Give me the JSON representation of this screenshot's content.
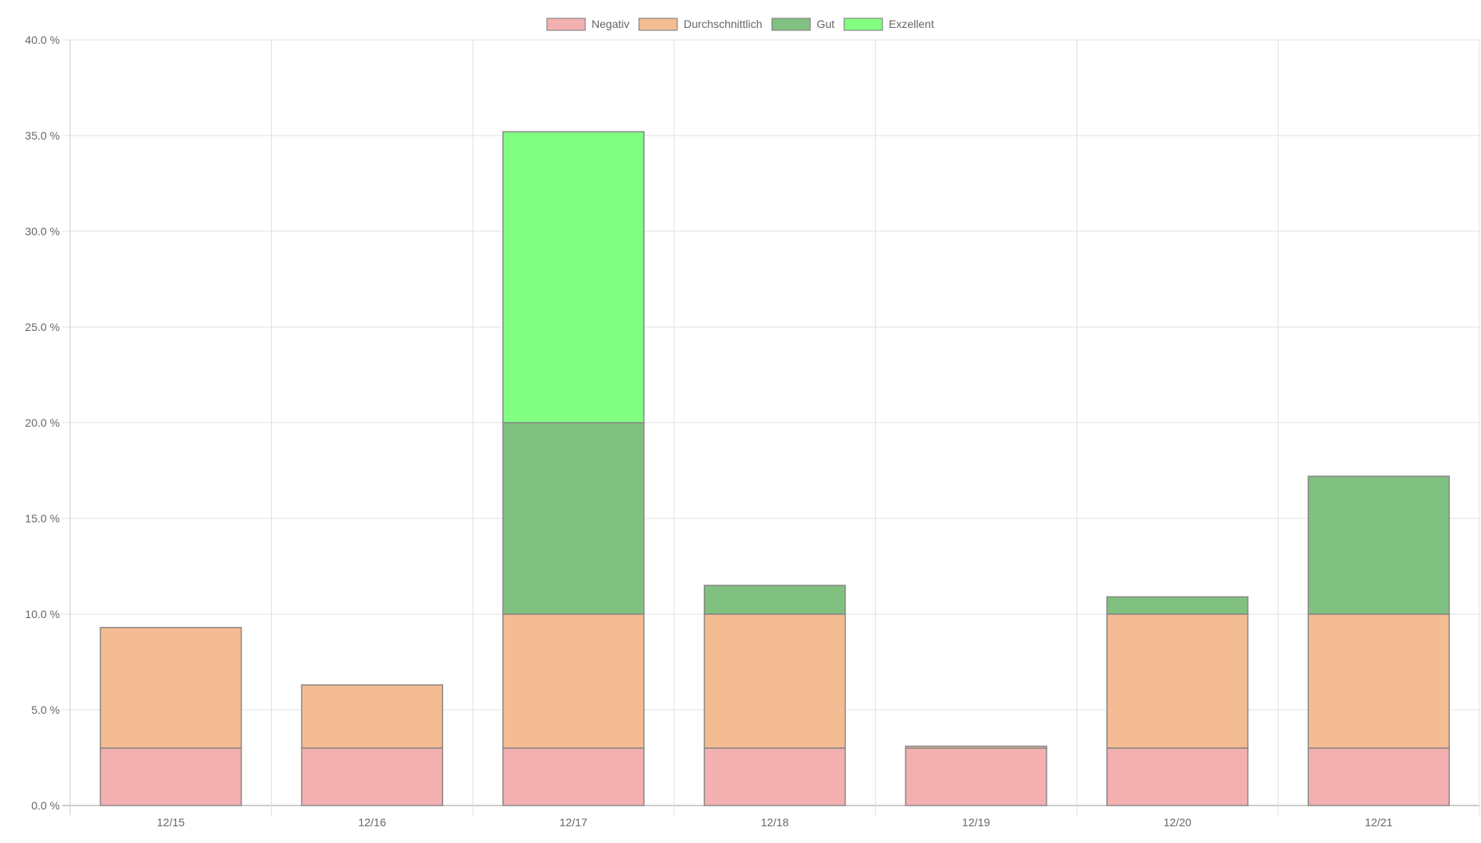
{
  "chart_data": {
    "type": "bar",
    "stacked": true,
    "categories": [
      "12/15",
      "12/16",
      "12/17",
      "12/18",
      "12/19",
      "12/20",
      "12/21"
    ],
    "series": [
      {
        "name": "Negativ",
        "color": "#f4b0b0",
        "values": [
          3,
          3,
          3,
          3,
          3,
          3,
          3
        ]
      },
      {
        "name": "Durchschnittlich",
        "color": "#f4bc92",
        "values": [
          6.3,
          3.3,
          7,
          7,
          0.1,
          7,
          7
        ]
      },
      {
        "name": "Gut",
        "color": "#80c080",
        "values": [
          0,
          0,
          10,
          1.5,
          0,
          0.9,
          7.2
        ]
      },
      {
        "name": "Exzellent",
        "color": "#80ff80",
        "values": [
          0,
          0,
          15.2,
          0,
          0,
          0,
          0
        ]
      }
    ],
    "ylim": [
      0,
      40
    ],
    "ytick_step": 5,
    "ytick_suffix": " %",
    "grid": true,
    "legend": "top-center",
    "title": "",
    "xlabel": "",
    "ylabel": ""
  }
}
